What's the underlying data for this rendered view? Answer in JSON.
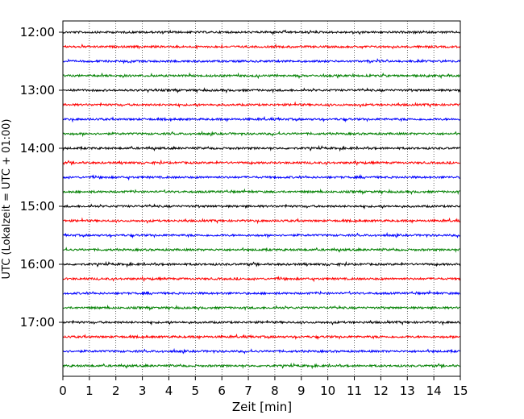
{
  "chart_data": {
    "type": "line",
    "title": "",
    "xlabel": "Zeit  [min]",
    "ylabel": "UTC (Lokalzeit = UTC + 01:00)",
    "xlim": [
      0,
      15
    ],
    "x_ticks": [
      "0",
      "1",
      "2",
      "3",
      "4",
      "5",
      "6",
      "7",
      "8",
      "9",
      "10",
      "11",
      "12",
      "13",
      "14",
      "15"
    ],
    "y_tick_labels": [
      "12:00",
      "13:00",
      "14:00",
      "15:00",
      "16:00",
      "17:00"
    ],
    "grid": "vertical dotted lines at each minute",
    "trace_interval_minutes": 15,
    "start_time": "12:00",
    "colors_cycle": [
      "#000000",
      "#ff0000",
      "#0000ff",
      "#008000"
    ],
    "traces": [
      {
        "start": "12:00",
        "color": "#000000"
      },
      {
        "start": "12:15",
        "color": "#ff0000"
      },
      {
        "start": "12:30",
        "color": "#0000ff"
      },
      {
        "start": "12:45",
        "color": "#008000"
      },
      {
        "start": "13:00",
        "color": "#000000"
      },
      {
        "start": "13:15",
        "color": "#ff0000"
      },
      {
        "start": "13:30",
        "color": "#0000ff"
      },
      {
        "start": "13:45",
        "color": "#008000"
      },
      {
        "start": "14:00",
        "color": "#000000"
      },
      {
        "start": "14:15",
        "color": "#ff0000"
      },
      {
        "start": "14:30",
        "color": "#0000ff"
      },
      {
        "start": "14:45",
        "color": "#008000"
      },
      {
        "start": "15:00",
        "color": "#000000"
      },
      {
        "start": "15:15",
        "color": "#ff0000"
      },
      {
        "start": "15:30",
        "color": "#0000ff"
      },
      {
        "start": "15:45",
        "color": "#008000"
      },
      {
        "start": "16:00",
        "color": "#000000"
      },
      {
        "start": "16:15",
        "color": "#ff0000"
      },
      {
        "start": "16:30",
        "color": "#0000ff"
      },
      {
        "start": "16:45",
        "color": "#008000"
      },
      {
        "start": "17:00",
        "color": "#000000"
      },
      {
        "start": "17:15",
        "color": "#ff0000"
      },
      {
        "start": "17:30",
        "color": "#0000ff"
      },
      {
        "start": "17:45",
        "color": "#008000"
      }
    ]
  }
}
